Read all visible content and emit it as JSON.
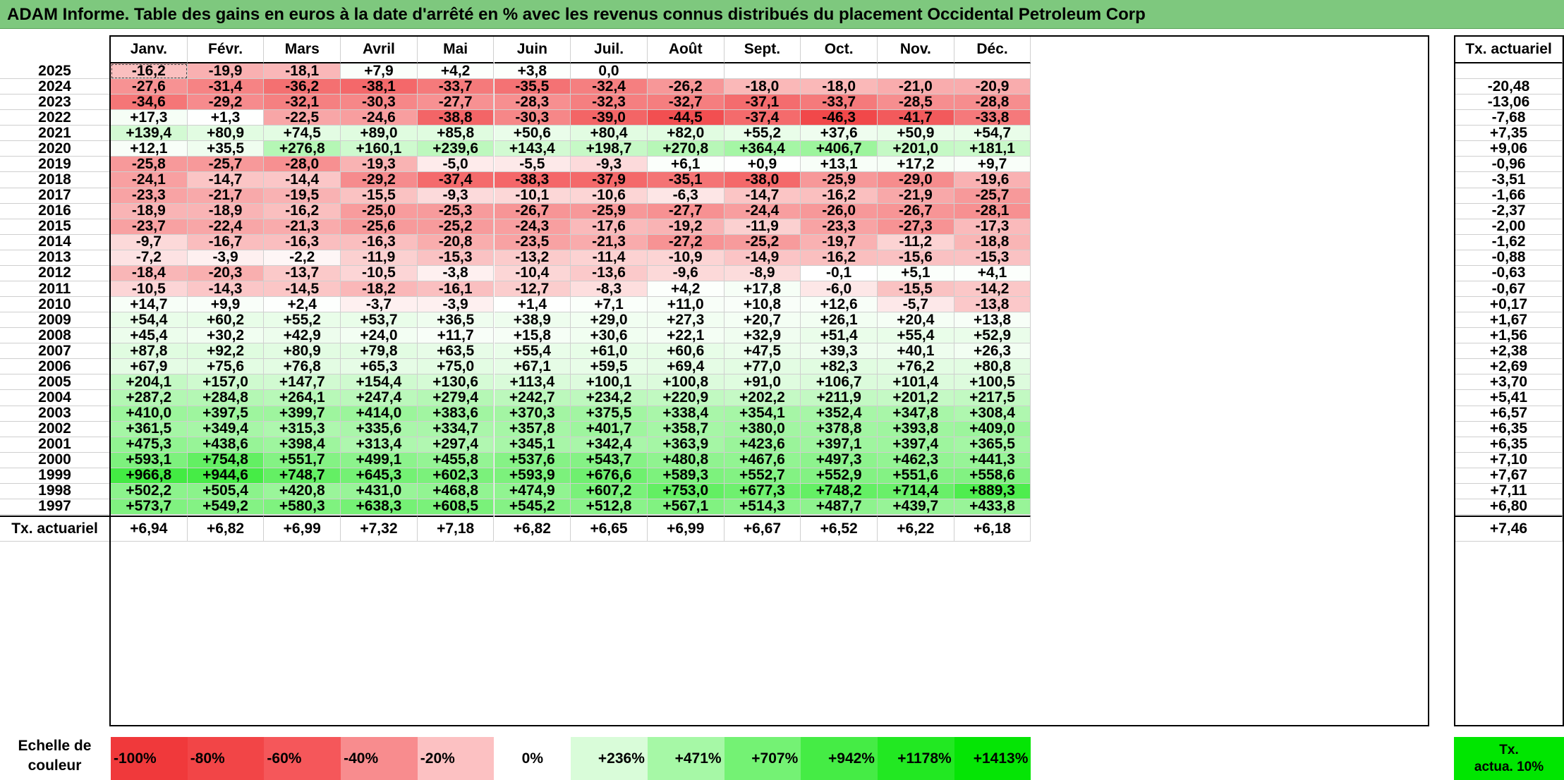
{
  "title": "ADAM Informe. Table des gains en euros à la date d'arrêté en % avec les revenus connus distribués du placement Occidental Petroleum Corp",
  "months": [
    "Janv.",
    "Févr.",
    "Mars",
    "Avril",
    "Mai",
    "Juin",
    "Juil.",
    "Août",
    "Sept.",
    "Oct.",
    "Nov.",
    "Déc."
  ],
  "side_header": "Tx. actuariel",
  "rows": [
    {
      "year": "2025",
      "values": [
        "-16,2",
        "-19,9",
        "-18,1",
        "+7,9",
        "+4,2",
        "+3,8",
        "0,0",
        "",
        "",
        "",
        "",
        ""
      ],
      "rate": ""
    },
    {
      "year": "2024",
      "values": [
        "-27,6",
        "-31,4",
        "-36,2",
        "-38,1",
        "-33,7",
        "-35,5",
        "-32,4",
        "-26,2",
        "-18,0",
        "-18,0",
        "-21,0",
        "-20,9"
      ],
      "rate": "-20,48"
    },
    {
      "year": "2023",
      "values": [
        "-34,6",
        "-29,2",
        "-32,1",
        "-30,3",
        "-27,7",
        "-28,3",
        "-32,3",
        "-32,7",
        "-37,1",
        "-33,7",
        "-28,5",
        "-28,8"
      ],
      "rate": "-13,06"
    },
    {
      "year": "2022",
      "values": [
        "+17,3",
        "+1,3",
        "-22,5",
        "-24,6",
        "-38,8",
        "-30,3",
        "-39,0",
        "-44,5",
        "-37,4",
        "-46,3",
        "-41,7",
        "-33,8"
      ],
      "rate": "-7,68"
    },
    {
      "year": "2021",
      "values": [
        "+139,4",
        "+80,9",
        "+74,5",
        "+89,0",
        "+85,8",
        "+50,6",
        "+80,4",
        "+82,0",
        "+55,2",
        "+37,6",
        "+50,9",
        "+54,7"
      ],
      "rate": "+7,35"
    },
    {
      "year": "2020",
      "values": [
        "+12,1",
        "+35,5",
        "+276,8",
        "+160,1",
        "+239,6",
        "+143,4",
        "+198,7",
        "+270,8",
        "+364,4",
        "+406,7",
        "+201,0",
        "+181,1"
      ],
      "rate": "+9,06"
    },
    {
      "year": "2019",
      "values": [
        "-25,8",
        "-25,7",
        "-28,0",
        "-19,3",
        "-5,0",
        "-5,5",
        "-9,3",
        "+6,1",
        "+0,9",
        "+13,1",
        "+17,2",
        "+9,7"
      ],
      "rate": "-0,96"
    },
    {
      "year": "2018",
      "values": [
        "-24,1",
        "-14,7",
        "-14,4",
        "-29,2",
        "-37,4",
        "-38,3",
        "-37,9",
        "-35,1",
        "-38,0",
        "-25,9",
        "-29,0",
        "-19,6"
      ],
      "rate": "-3,51"
    },
    {
      "year": "2017",
      "values": [
        "-23,3",
        "-21,7",
        "-19,5",
        "-15,5",
        "-9,3",
        "-10,1",
        "-10,6",
        "-6,3",
        "-14,7",
        "-16,2",
        "-21,9",
        "-25,7"
      ],
      "rate": "-1,66"
    },
    {
      "year": "2016",
      "values": [
        "-18,9",
        "-18,9",
        "-16,2",
        "-25,0",
        "-25,3",
        "-26,7",
        "-25,9",
        "-27,7",
        "-24,4",
        "-26,0",
        "-26,7",
        "-28,1"
      ],
      "rate": "-2,37"
    },
    {
      "year": "2015",
      "values": [
        "-23,7",
        "-22,4",
        "-21,3",
        "-25,6",
        "-25,2",
        "-24,3",
        "-17,6",
        "-19,2",
        "-11,9",
        "-23,3",
        "-27,3",
        "-17,3"
      ],
      "rate": "-2,00"
    },
    {
      "year": "2014",
      "values": [
        "-9,7",
        "-16,7",
        "-16,3",
        "-16,3",
        "-20,8",
        "-23,5",
        "-21,3",
        "-27,2",
        "-25,2",
        "-19,7",
        "-11,2",
        "-18,8"
      ],
      "rate": "-1,62"
    },
    {
      "year": "2013",
      "values": [
        "-7,2",
        "-3,9",
        "-2,2",
        "-11,9",
        "-15,3",
        "-13,2",
        "-11,4",
        "-10,9",
        "-14,9",
        "-16,2",
        "-15,6",
        "-15,3"
      ],
      "rate": "-0,88"
    },
    {
      "year": "2012",
      "values": [
        "-18,4",
        "-20,3",
        "-13,7",
        "-10,5",
        "-3,8",
        "-10,4",
        "-13,6",
        "-9,6",
        "-8,9",
        "-0,1",
        "+5,1",
        "+4,1"
      ],
      "rate": "-0,63"
    },
    {
      "year": "2011",
      "values": [
        "-10,5",
        "-14,3",
        "-14,5",
        "-18,2",
        "-16,1",
        "-12,7",
        "-8,3",
        "+4,2",
        "+17,8",
        "-6,0",
        "-15,5",
        "-14,2"
      ],
      "rate": "-0,67"
    },
    {
      "year": "2010",
      "values": [
        "+14,7",
        "+9,9",
        "+2,4",
        "-3,7",
        "-3,9",
        "+1,4",
        "+7,1",
        "+11,0",
        "+10,8",
        "+12,6",
        "-5,7",
        "-13,8"
      ],
      "rate": "+0,17"
    },
    {
      "year": "2009",
      "values": [
        "+54,4",
        "+60,2",
        "+55,2",
        "+53,7",
        "+36,5",
        "+38,9",
        "+29,0",
        "+27,3",
        "+20,7",
        "+26,1",
        "+20,4",
        "+13,8"
      ],
      "rate": "+1,67"
    },
    {
      "year": "2008",
      "values": [
        "+45,4",
        "+30,2",
        "+42,9",
        "+24,0",
        "+11,7",
        "+15,8",
        "+30,6",
        "+22,1",
        "+32,9",
        "+51,4",
        "+55,4",
        "+52,9"
      ],
      "rate": "+1,56"
    },
    {
      "year": "2007",
      "values": [
        "+87,8",
        "+92,2",
        "+80,9",
        "+79,8",
        "+63,5",
        "+55,4",
        "+61,0",
        "+60,6",
        "+47,5",
        "+39,3",
        "+40,1",
        "+26,3"
      ],
      "rate": "+2,38"
    },
    {
      "year": "2006",
      "values": [
        "+67,9",
        "+75,6",
        "+76,8",
        "+65,3",
        "+75,0",
        "+67,1",
        "+59,5",
        "+69,4",
        "+77,0",
        "+82,3",
        "+76,2",
        "+80,8"
      ],
      "rate": "+2,69"
    },
    {
      "year": "2005",
      "values": [
        "+204,1",
        "+157,0",
        "+147,7",
        "+154,4",
        "+130,6",
        "+113,4",
        "+100,1",
        "+100,8",
        "+91,0",
        "+106,7",
        "+101,4",
        "+100,5"
      ],
      "rate": "+3,70"
    },
    {
      "year": "2004",
      "values": [
        "+287,2",
        "+284,8",
        "+264,1",
        "+247,4",
        "+279,4",
        "+242,7",
        "+234,2",
        "+220,9",
        "+202,2",
        "+211,9",
        "+201,2",
        "+217,5"
      ],
      "rate": "+5,41"
    },
    {
      "year": "2003",
      "values": [
        "+410,0",
        "+397,5",
        "+399,7",
        "+414,0",
        "+383,6",
        "+370,3",
        "+375,5",
        "+338,4",
        "+354,1",
        "+352,4",
        "+347,8",
        "+308,4"
      ],
      "rate": "+6,57"
    },
    {
      "year": "2002",
      "values": [
        "+361,5",
        "+349,4",
        "+315,3",
        "+335,6",
        "+334,7",
        "+357,8",
        "+401,7",
        "+358,7",
        "+380,0",
        "+378,8",
        "+393,8",
        "+409,0"
      ],
      "rate": "+6,35"
    },
    {
      "year": "2001",
      "values": [
        "+475,3",
        "+438,6",
        "+398,4",
        "+313,4",
        "+297,4",
        "+345,1",
        "+342,4",
        "+363,9",
        "+423,6",
        "+397,1",
        "+397,4",
        "+365,5"
      ],
      "rate": "+6,35"
    },
    {
      "year": "2000",
      "values": [
        "+593,1",
        "+754,8",
        "+551,7",
        "+499,1",
        "+455,8",
        "+537,6",
        "+543,7",
        "+480,8",
        "+467,6",
        "+497,3",
        "+462,3",
        "+441,3"
      ],
      "rate": "+7,10"
    },
    {
      "year": "1999",
      "values": [
        "+966,8",
        "+944,6",
        "+748,7",
        "+645,3",
        "+602,3",
        "+593,9",
        "+676,6",
        "+589,3",
        "+552,7",
        "+552,9",
        "+551,6",
        "+558,6"
      ],
      "rate": "+7,67"
    },
    {
      "year": "1998",
      "values": [
        "+502,2",
        "+505,4",
        "+420,8",
        "+431,0",
        "+468,8",
        "+474,9",
        "+607,2",
        "+753,0",
        "+677,3",
        "+748,2",
        "+714,4",
        "+889,3"
      ],
      "rate": "+7,11"
    },
    {
      "year": "1997",
      "values": [
        "+573,7",
        "+549,2",
        "+580,3",
        "+638,3",
        "+608,5",
        "+545,2",
        "+512,8",
        "+567,1",
        "+514,3",
        "+487,7",
        "+439,7",
        "+433,8"
      ],
      "rate": "+6,80"
    }
  ],
  "totals_row": {
    "label": "Tx. actuariel",
    "values": [
      "+6,94",
      "+6,82",
      "+6,99",
      "+7,32",
      "+7,18",
      "+6,82",
      "+6,65",
      "+6,99",
      "+6,67",
      "+6,52",
      "+6,22",
      "+6,18"
    ],
    "rate": "+7,46"
  },
  "scale": {
    "label_line1": "Echelle de",
    "label_line2": "couleur",
    "steps": [
      {
        "label": "-100%",
        "color": "#f0393b",
        "align": "left"
      },
      {
        "label": "-80%",
        "color": "#f24547",
        "align": "left"
      },
      {
        "label": "-60%",
        "color": "#f5575a",
        "align": "left"
      },
      {
        "label": "-40%",
        "color": "#f88c8e",
        "align": "left"
      },
      {
        "label": "-20%",
        "color": "#fcc1c2",
        "align": "left"
      },
      {
        "label": "0%",
        "color": "#ffffff",
        "align": "center"
      },
      {
        "label": "+236%",
        "color": "#d9fcd9",
        "align": "right"
      },
      {
        "label": "+471%",
        "color": "#a6f8a6",
        "align": "right"
      },
      {
        "label": "+707%",
        "color": "#74f274",
        "align": "right"
      },
      {
        "label": "+942%",
        "color": "#45ec45",
        "align": "right"
      },
      {
        "label": "+1178%",
        "color": "#22e822",
        "align": "right"
      },
      {
        "label": "+1413%",
        "color": "#05e505",
        "align": "right"
      }
    ],
    "side_line1": "Tx.",
    "side_line2": "actua. 10%",
    "side_color": "#00e600"
  }
}
